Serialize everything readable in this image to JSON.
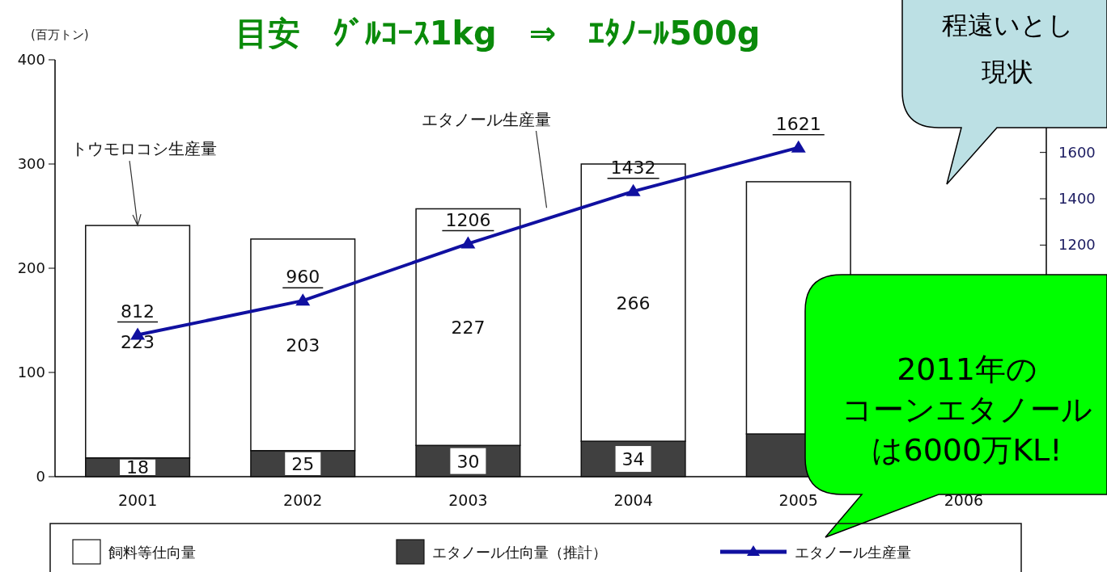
{
  "chart_data": {
    "type": "bar",
    "stacked": true,
    "title": "目安　ｸﾞﾙｺｰｽ1kg　⇒　ｴﾀﾉｰﾙ500g",
    "ylabel": "(百万トン)",
    "categories": [
      "2001",
      "2002",
      "2003",
      "2004",
      "2005",
      "2006"
    ],
    "series": [
      {
        "name": "エタノール仕向量（推計）",
        "color": "#404040",
        "values": [
          18,
          25,
          30,
          34,
          41,
          null
        ],
        "value_labels": [
          "18",
          "25",
          "30",
          "34",
          null,
          null
        ]
      },
      {
        "name": "飼料等仕向量",
        "color": "#ffffff",
        "values": [
          223,
          203,
          227,
          266,
          242,
          null
        ],
        "value_labels": [
          "223",
          "203",
          "227",
          "266",
          null,
          null
        ]
      },
      {
        "name": "エタノール生産量",
        "type": "line",
        "axis": "y2",
        "color": "#1010a0",
        "marker": "triangle",
        "values": [
          812,
          960,
          1206,
          1432,
          1621,
          null
        ],
        "value_labels": [
          "812",
          "960",
          "1206",
          "1432",
          "1621",
          null
        ]
      }
    ],
    "ylim": [
      0,
      400
    ],
    "yticks": [
      0,
      100,
      200,
      300,
      400
    ],
    "y2lim": [
      200,
      2000
    ],
    "y2ticks": [
      1200,
      1400,
      1600
    ],
    "legend": "bottom",
    "grid": false,
    "annotations": [
      {
        "text": "トウモロコシ生産量",
        "x": "2001",
        "y": 241
      },
      "エタノール生産量",
      "程遠いとし",
      "現状",
      "2011年の",
      "コーンエタノール",
      "は6000万KL!"
    ]
  }
}
